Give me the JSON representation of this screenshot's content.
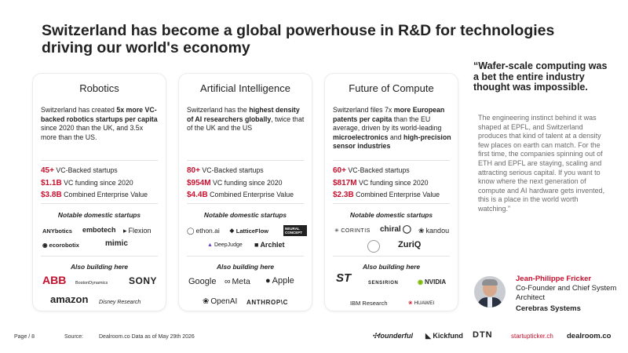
{
  "title": "Switzerland has become a global powerhouse in R&D for technologies driving our world's economy",
  "columns": [
    {
      "heading": "Robotics",
      "desc": [
        {
          "t": "Switzerland has created ",
          "b": false
        },
        {
          "t": "5x more VC-backed robotics startups per capita",
          "b": true
        },
        {
          "t": " since 2020 than the UK, and 3.5x more than the US.",
          "b": false
        }
      ],
      "stats": [
        {
          "value": "45+",
          "label": " VC-Backed startups"
        },
        {
          "value": "$1.1B",
          "label": " VC funding since 2020"
        },
        {
          "value": "$3.8B",
          "label": " Combined Enterprise Value"
        }
      ],
      "notable_label": "Notable domestic startups",
      "notable": [
        "ANYbotics",
        "embotech",
        "Flexion",
        "ecorobotix",
        "mimic"
      ],
      "also_label": "Also building here",
      "also": [
        "ABB",
        "BostonDynamics",
        "SONY",
        "amazon",
        "Disney Research"
      ]
    },
    {
      "heading": "Artificial Intelligence",
      "desc": [
        {
          "t": "Switzerland has the ",
          "b": false
        },
        {
          "t": "highest density of AI researchers globally",
          "b": true
        },
        {
          "t": ", twice that of the UK and the US",
          "b": false
        }
      ],
      "stats": [
        {
          "value": "80+",
          "label": " VC-Backed startups"
        },
        {
          "value": "$954M",
          "label": " VC funding since 2020"
        },
        {
          "value": "$4.4B",
          "label": " Combined Enterprise Value"
        }
      ],
      "notable_label": "Notable domestic startups",
      "notable": [
        "ethon.ai",
        "LatticeFlow",
        "NEURAL CONCEPT",
        "DeepJudge",
        "Archlet"
      ],
      "also_label": "Also building here",
      "also": [
        "Google",
        "Meta",
        "Apple",
        "OpenAI",
        "ANTHROP\\C"
      ]
    },
    {
      "heading": "Future of Compute",
      "desc": [
        {
          "t": "Switzerland files 7x ",
          "b": false
        },
        {
          "t": "more European patents per capita",
          "b": true
        },
        {
          "t": " than the EU average, driven by its world-leading ",
          "b": false
        },
        {
          "t": "microelectronics",
          "b": true
        },
        {
          "t": " and ",
          "b": false
        },
        {
          "t": "high-precision sensor industries",
          "b": true
        }
      ],
      "stats": [
        {
          "value": "60+",
          "label": " VC-Backed startups"
        },
        {
          "value": "$817M",
          "label": " VC funding since 2020"
        },
        {
          "value": "$2.3B",
          "label": " Combined Enterprise Value"
        }
      ],
      "notable_label": "Notable domestic startups",
      "notable": [
        "CORINTIS",
        "chiral",
        "kandou",
        "ZuriQ"
      ],
      "also_label": "Also building here",
      "also": [
        "ST",
        "SENSIRION",
        "NVIDIA",
        "IBM Research",
        "HUAWEI"
      ]
    }
  ],
  "quote": {
    "headline": "“Wafer-scale computing was a bet the entire industry thought was impossible.",
    "body": "The engineering instinct behind it was shaped at EPFL, and Switzerland produces that kind of talent at a density few places on earth can match. For the first time, the companies spinning out of ETH and EPFL are staying, scaling and attracting serious capital. If you want to know where the next generation of compute and AI hardware gets invented, this is a place in the world worth watching.”"
  },
  "person": {
    "name": "Jean-Philippe Fricker",
    "role": "Co-Founder and Chief System Architect",
    "org": "Cerebras Systems"
  },
  "footer": {
    "page": "Page / 8",
    "source_label": "Source:",
    "source": "Dealroom.co  Data as of May 29th 2026",
    "partners": [
      "founderful",
      "Kickfund",
      "DTN",
      "startupticker.ch",
      "dealroom.co"
    ]
  },
  "colors": {
    "accent": "#c8102e",
    "text": "#222222",
    "muted": "#6a6a6a"
  }
}
